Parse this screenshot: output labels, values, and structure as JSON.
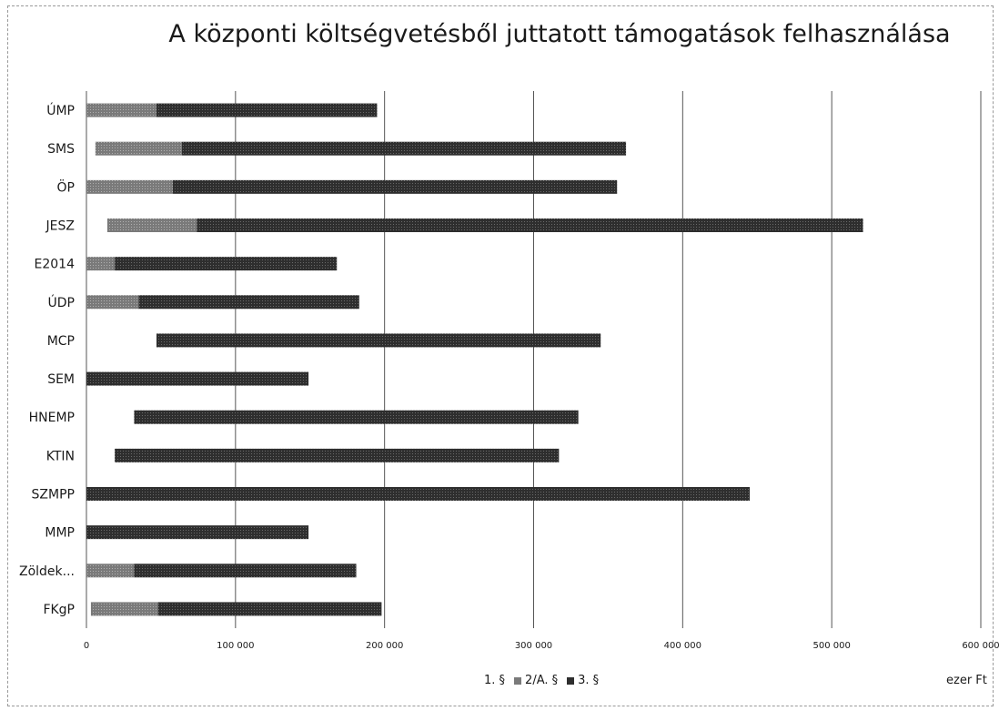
{
  "chart_data": {
    "type": "bar",
    "orientation": "horizontal",
    "stacked": true,
    "title": "A központi költségvetésből juttatott támogatások felhasználása",
    "unit_label": "ezer Ft",
    "categories": [
      "ÚMP",
      "SMS",
      "ÖP",
      "JESZ",
      "E2014",
      "ÚDP",
      "MCP",
      "SEM",
      "HNEMP",
      "KTIN",
      "SZMPP",
      "MMP",
      "Zöldek...",
      "FKgP"
    ],
    "series": [
      {
        "name": "1. §",
        "color": "#ffffff",
        "values": [
          0,
          6000,
          0,
          14000,
          0,
          0,
          47000,
          0,
          32000,
          19000,
          0,
          0,
          0,
          3000
        ]
      },
      {
        "name": "2/A. §",
        "color": "#7a7a7a",
        "values": [
          47000,
          58000,
          58000,
          60000,
          19000,
          35000,
          0,
          0,
          0,
          0,
          0,
          0,
          32000,
          45000
        ]
      },
      {
        "name": "3. §",
        "color": "#2e2e2e",
        "values": [
          148000,
          298000,
          298000,
          447000,
          149000,
          148000,
          298000,
          149000,
          298000,
          298000,
          445000,
          149000,
          149000,
          150000
        ]
      }
    ],
    "xlim": [
      0,
      600000
    ],
    "xticks": [
      "0",
      "100 000",
      "200 000",
      "300 000",
      "400 000",
      "500 000",
      "600 000"
    ],
    "grid": true,
    "legend_position": "bottom"
  }
}
